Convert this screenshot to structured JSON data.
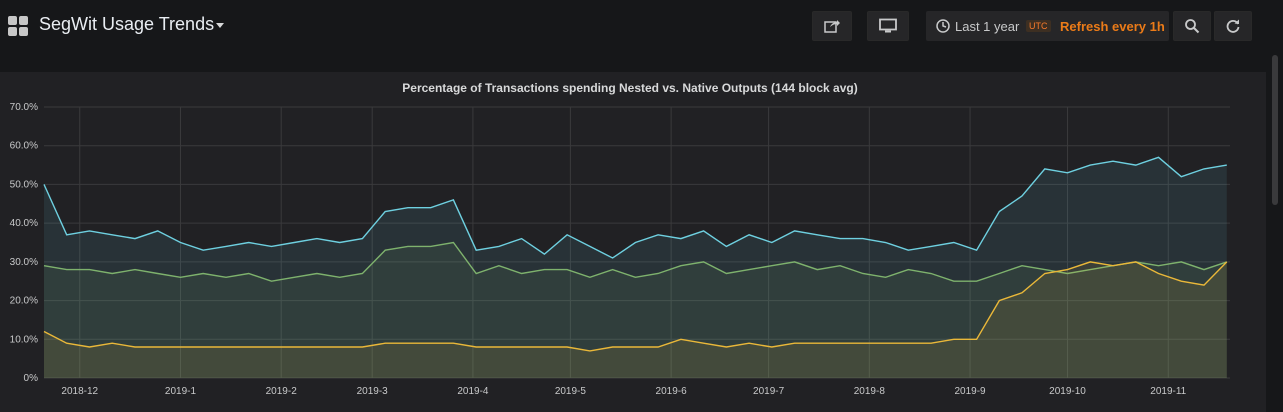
{
  "dashboard": {
    "title": "SegWit Usage Trends",
    "time_range": "Last 1 year",
    "timezone_badge": "UTC",
    "refresh": "Refresh every 1h",
    "icons": [
      "grid-icon",
      "share-icon",
      "monitor-icon",
      "clock-icon",
      "zoom-out-icon",
      "refresh-icon"
    ]
  },
  "colors": {
    "background": "#161719",
    "panel": "#212124",
    "series_top": "#6ed0e0",
    "series_mid": "#7eb26d",
    "series_low": "#eab839",
    "refresh": "#eb7b18"
  },
  "chart_data": {
    "type": "line",
    "title": "Percentage of Transactions spending Nested vs. Native Outputs (144 block avg)",
    "xlabel": "",
    "ylabel": "",
    "ylim": [
      0,
      70
    ],
    "yticks": [
      "0%",
      "10.0%",
      "20.0%",
      "30.0%",
      "40.0%",
      "50.0%",
      "60.0%",
      "70.0%"
    ],
    "x_ticks": [
      "2018-12",
      "2019-1",
      "2019-2",
      "2019-3",
      "2019-4",
      "2019-5",
      "2019-6",
      "2019-7",
      "2019-8",
      "2019-9",
      "2019-10",
      "2019-11"
    ],
    "x_range": [
      "2018-11-20",
      "2019-11-20"
    ],
    "x": [
      "2018-11-20",
      "2018-11-27",
      "2018-12-04",
      "2018-12-11",
      "2018-12-18",
      "2018-12-25",
      "2019-01-01",
      "2019-01-08",
      "2019-01-15",
      "2019-01-22",
      "2019-01-29",
      "2019-02-05",
      "2019-02-12",
      "2019-02-19",
      "2019-02-26",
      "2019-03-05",
      "2019-03-12",
      "2019-03-19",
      "2019-03-26",
      "2019-04-02",
      "2019-04-09",
      "2019-04-16",
      "2019-04-23",
      "2019-04-30",
      "2019-05-07",
      "2019-05-14",
      "2019-05-21",
      "2019-05-28",
      "2019-06-04",
      "2019-06-11",
      "2019-06-18",
      "2019-06-25",
      "2019-07-02",
      "2019-07-09",
      "2019-07-16",
      "2019-07-23",
      "2019-07-30",
      "2019-08-06",
      "2019-08-13",
      "2019-08-20",
      "2019-08-27",
      "2019-09-03",
      "2019-09-10",
      "2019-09-17",
      "2019-09-24",
      "2019-10-01",
      "2019-10-08",
      "2019-10-15",
      "2019-10-22",
      "2019-10-29",
      "2019-11-05",
      "2019-11-12",
      "2019-11-19"
    ],
    "grid": true,
    "legend": "none",
    "series": [
      {
        "color": "#6ed0e0",
        "values": [
          50,
          37,
          38,
          37,
          36,
          38,
          35,
          33,
          34,
          35,
          34,
          35,
          36,
          35,
          36,
          43,
          44,
          44,
          46,
          33,
          34,
          36,
          32,
          37,
          34,
          31,
          35,
          37,
          36,
          38,
          34,
          37,
          35,
          38,
          37,
          36,
          36,
          35,
          33,
          34,
          35,
          33,
          43,
          47,
          54,
          53,
          55,
          56,
          55,
          57,
          52,
          54,
          55
        ]
      },
      {
        "color": "#7eb26d",
        "values": [
          29,
          28,
          28,
          27,
          28,
          27,
          26,
          27,
          26,
          27,
          25,
          26,
          27,
          26,
          27,
          33,
          34,
          34,
          35,
          27,
          29,
          27,
          28,
          28,
          26,
          28,
          26,
          27,
          29,
          30,
          27,
          28,
          29,
          30,
          28,
          29,
          27,
          26,
          28,
          27,
          25,
          25,
          27,
          29,
          28,
          27,
          28,
          29,
          30,
          29,
          30,
          28,
          30
        ]
      },
      {
        "color": "#eab839",
        "values": [
          12,
          9,
          8,
          9,
          8,
          8,
          8,
          8,
          8,
          8,
          8,
          8,
          8,
          8,
          8,
          9,
          9,
          9,
          9,
          8,
          8,
          8,
          8,
          8,
          7,
          8,
          8,
          8,
          10,
          9,
          8,
          9,
          8,
          9,
          9,
          9,
          9,
          9,
          9,
          9,
          10,
          10,
          20,
          22,
          27,
          28,
          30,
          29,
          30,
          27,
          25,
          24,
          30
        ]
      }
    ]
  }
}
